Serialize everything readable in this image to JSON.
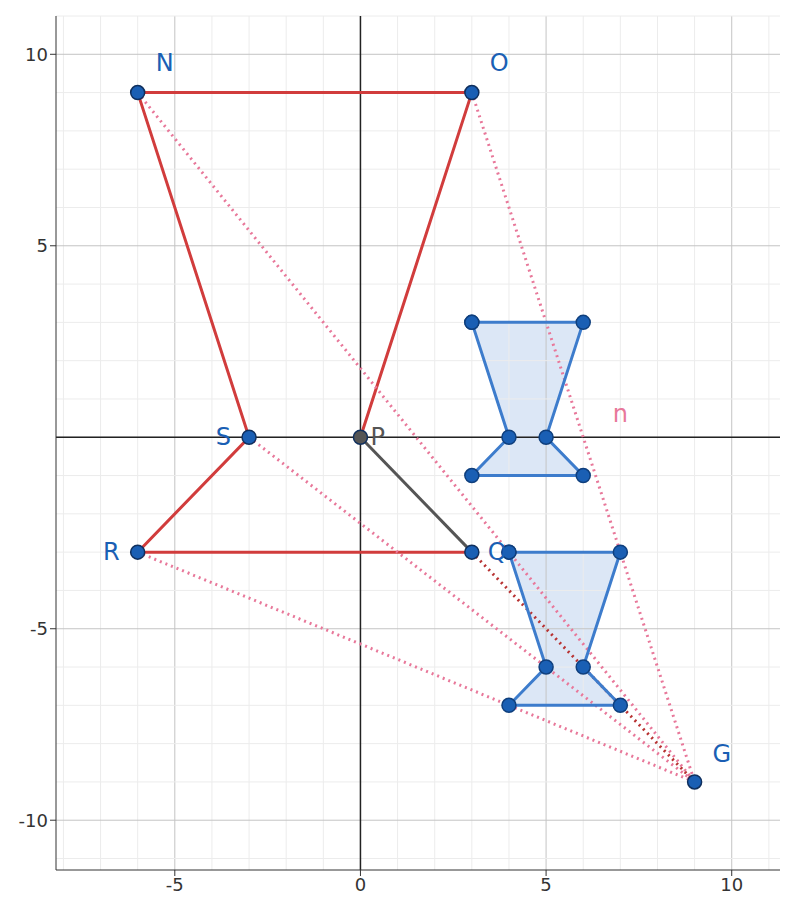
{
  "chart_data": {
    "type": "scatter",
    "xlim": [
      -8.2,
      11.3
    ],
    "ylim": [
      -11.3,
      11
    ],
    "xticks": [
      -5,
      0,
      5,
      10
    ],
    "yticks": [
      -10,
      -5,
      5,
      10
    ],
    "grid": true,
    "series": [
      {
        "type": "line",
        "color": "#d13c3c",
        "line_style": "solid",
        "x": [
          0,
          3,
          -6,
          -3,
          -6,
          3
        ],
        "y": [
          0,
          9,
          9,
          0,
          -3,
          -3
        ]
      },
      {
        "type": "line",
        "color": "#555555",
        "line_style": "solid",
        "x": [
          0,
          3
        ],
        "y": [
          0,
          -3
        ]
      },
      {
        "type": "polygon",
        "color": "#3d7ccc",
        "marker": "circle",
        "x": [
          3,
          6,
          5,
          6,
          3,
          4
        ],
        "y": [
          3,
          3,
          0,
          -1,
          -1,
          0
        ]
      },
      {
        "type": "polygon",
        "color": "#3d7ccc",
        "marker": "circle",
        "x": [
          4,
          7,
          6,
          7,
          4,
          5
        ],
        "y": [
          -3,
          -3,
          -6,
          -7,
          -7,
          -6
        ]
      },
      {
        "type": "line",
        "color": "#e8789a",
        "line_style": "dotted",
        "x": [
          -6,
          9,
          null,
          3,
          9,
          null,
          -3,
          9,
          null,
          -6,
          9
        ],
        "y": [
          9,
          -9,
          null,
          9,
          -9,
          null,
          0,
          -9,
          null,
          -3,
          -9
        ]
      },
      {
        "type": "line",
        "color": "#b83333",
        "line_style": "dotted",
        "x": [
          3,
          9
        ],
        "y": [
          -3,
          -9
        ]
      },
      {
        "type": "scatter",
        "color": "#1a5fb4",
        "marker": "circle",
        "x": [
          -6,
          3,
          -3,
          -6,
          3,
          9
        ],
        "y": [
          9,
          9,
          0,
          -3,
          -3,
          -9
        ],
        "labels": [
          "N",
          "O",
          "S",
          "R",
          "Q",
          "G"
        ]
      },
      {
        "type": "scatter",
        "color": "#555555",
        "marker": "circle",
        "x": [
          0
        ],
        "y": [
          0
        ],
        "labels": [
          "P"
        ]
      }
    ],
    "annotations": [
      {
        "text": "n",
        "x": 7,
        "y": 0.6,
        "color": "#e8789a"
      }
    ]
  }
}
